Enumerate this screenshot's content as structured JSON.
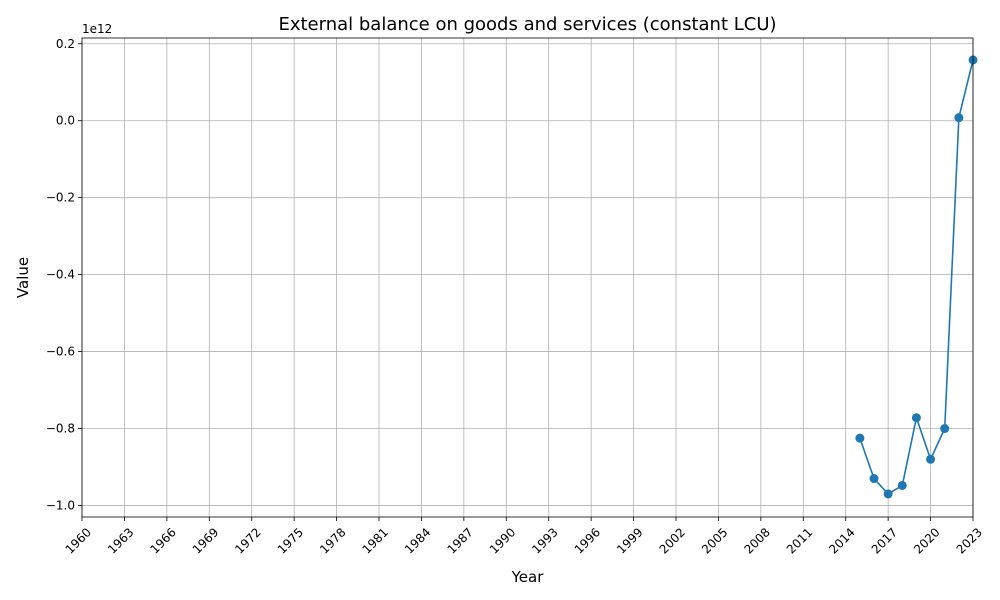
{
  "chart_data": {
    "type": "line",
    "title": "External balance on goods and services (constant LCU)",
    "xlabel": "Year",
    "ylabel": "Value",
    "y_offset_label": "1e12",
    "x_ticks": [
      "1960",
      "1963",
      "1966",
      "1969",
      "1972",
      "1975",
      "1978",
      "1981",
      "1984",
      "1987",
      "1990",
      "1993",
      "1996",
      "1999",
      "2002",
      "2005",
      "2008",
      "2011",
      "2014",
      "2017",
      "2020",
      "2023"
    ],
    "y_ticks": [
      0.2,
      0.0,
      -0.2,
      -0.4,
      -0.6,
      -0.8,
      -1.0
    ],
    "y_tick_labels": [
      "0.2",
      "0.0",
      "−0.2",
      "−0.4",
      "−0.6",
      "−0.8",
      "−1.0"
    ],
    "xlim": [
      1960,
      2023
    ],
    "ylim": [
      -1.03,
      0.215
    ],
    "grid": true,
    "series": [
      {
        "color": "#1f77b4",
        "x": [
          2015,
          2016,
          2017,
          2018,
          2019,
          2020,
          2021,
          2022,
          2023
        ],
        "y": [
          -0.825,
          -0.93,
          -0.97,
          -0.948,
          -0.772,
          -0.88,
          -0.8,
          0.008,
          0.158
        ]
      }
    ]
  }
}
